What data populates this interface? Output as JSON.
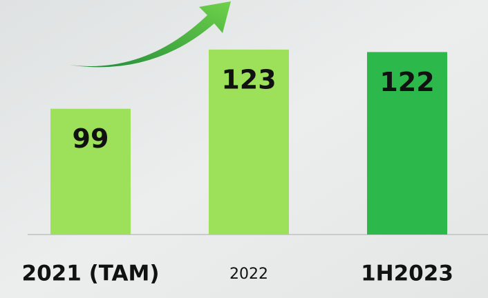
{
  "chart_data": {
    "type": "bar",
    "categories": [
      "2021 (TAM)",
      "2022",
      "1H2023"
    ],
    "values": [
      99,
      123,
      122
    ],
    "colors": [
      "#9de05a",
      "#9de05a",
      "#2db84b"
    ],
    "ylim": [
      48,
      128
    ]
  }
}
